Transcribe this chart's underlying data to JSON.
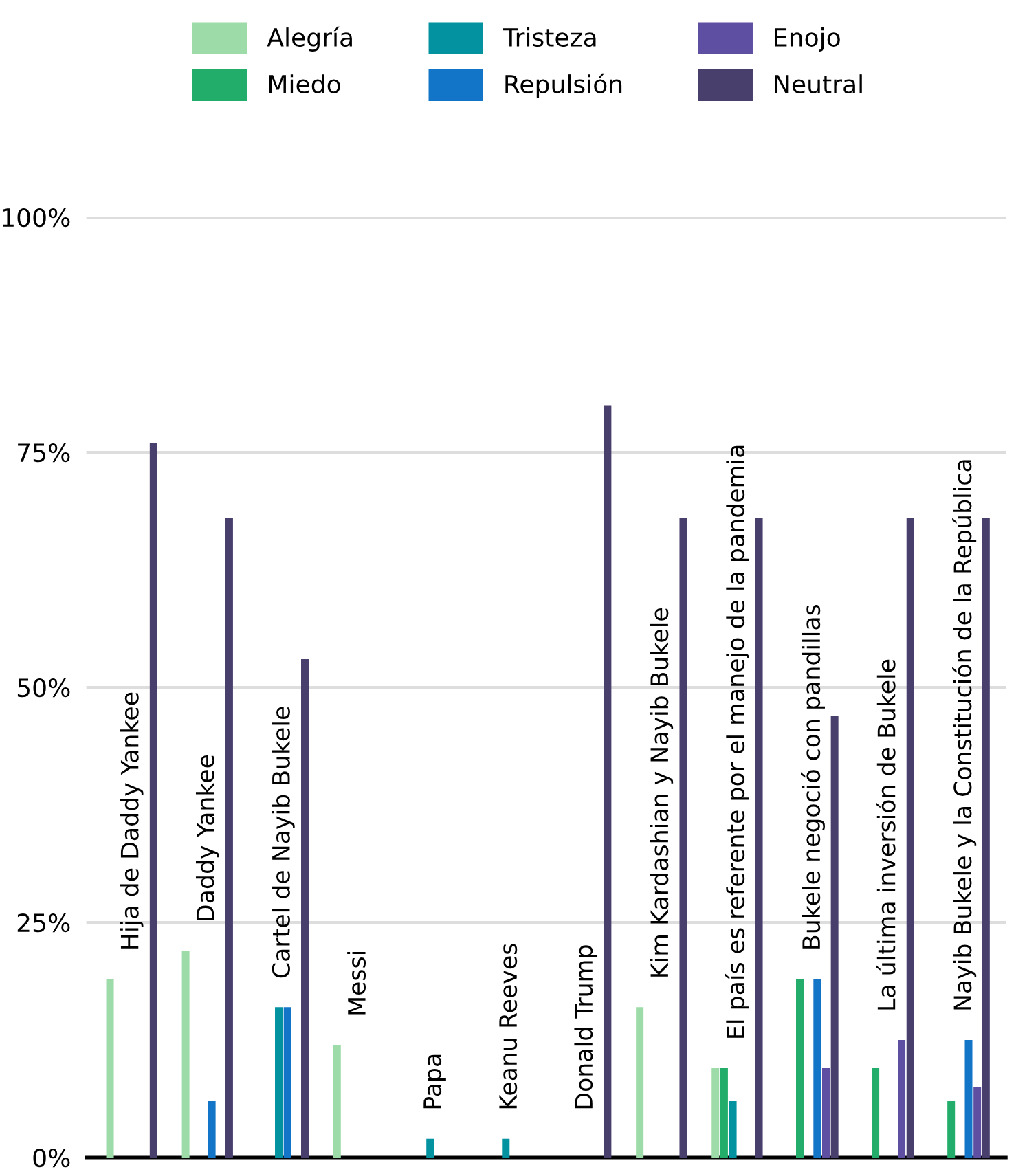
{
  "chart_data": {
    "type": "bar",
    "categories": [
      "Hija de Daddy Yankee",
      "Daddy Yankee",
      "Cartel de Nayib Bukele",
      "Messi",
      "Papa",
      "Keanu Reeves",
      "Donald Trump",
      "Kim Kardashian y Nayib Bukele",
      "El país es referente por el manejo de la pandemia",
      "Bukele negoció con pandillas",
      "La última inversión de Bukele",
      "Nayib Bukele y la Constitución de la República"
    ],
    "series": [
      {
        "name": "Alegría",
        "color": "#9ddca8",
        "values": [
          19,
          22,
          null,
          12,
          null,
          null,
          null,
          16,
          9.5,
          null,
          null,
          null
        ]
      },
      {
        "name": "Miedo",
        "color": "#22ad6a",
        "values": [
          null,
          null,
          null,
          null,
          null,
          null,
          null,
          null,
          9.5,
          19,
          9.5,
          6
        ]
      },
      {
        "name": "Tristeza",
        "color": "#0292a0",
        "values": [
          null,
          null,
          16,
          null,
          2,
          2,
          null,
          null,
          6,
          null,
          null,
          null
        ]
      },
      {
        "name": "Repulsión",
        "color": "#1275c8",
        "values": [
          null,
          6,
          16,
          null,
          null,
          null,
          null,
          null,
          null,
          19,
          null,
          12.5
        ]
      },
      {
        "name": "Enojo",
        "color": "#5e4fa2",
        "values": [
          null,
          null,
          null,
          null,
          null,
          null,
          null,
          null,
          null,
          9.5,
          12.5,
          7.5
        ]
      },
      {
        "name": "Neutral",
        "color": "#483f6c",
        "values": [
          76,
          68,
          53,
          null,
          null,
          null,
          80,
          68,
          68,
          47,
          68,
          68
        ]
      }
    ],
    "ylim": [
      0,
      100
    ],
    "yticks": [
      {
        "value": 0,
        "label": "0%"
      },
      {
        "value": 25,
        "label": "25%"
      },
      {
        "value": 50,
        "label": "50%"
      },
      {
        "value": 75,
        "label": "75%"
      },
      {
        "value": 100,
        "label": "100%"
      }
    ],
    "grid": "y",
    "legend": "top"
  }
}
